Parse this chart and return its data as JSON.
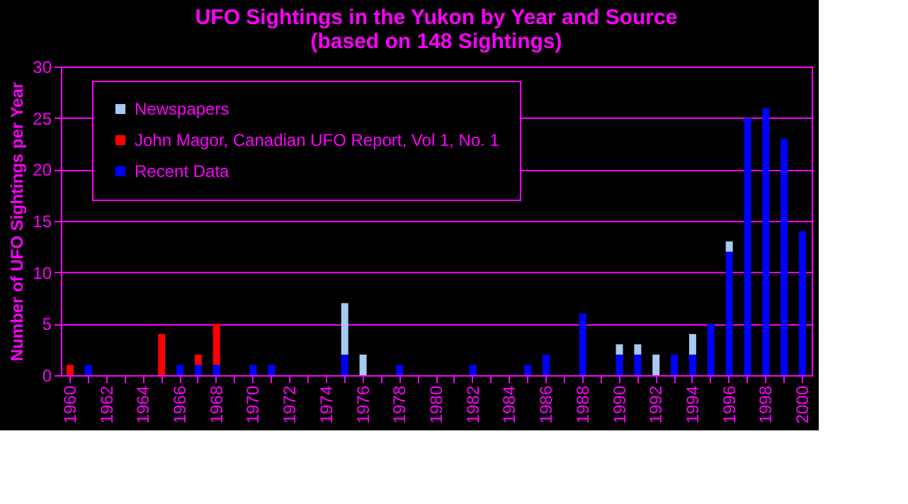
{
  "chart_data": {
    "type": "bar",
    "title": [
      "UFO Sightings in the Yukon by Year and Source",
      "(based on 148 Sightings)"
    ],
    "ylabel": "Number of UFO Sightings per Year",
    "categories": [
      "1960",
      null,
      "1962",
      null,
      "1964",
      null,
      "1966",
      null,
      "1968",
      null,
      "1970",
      null,
      "1972",
      null,
      "1974",
      null,
      "1976",
      null,
      "1978",
      null,
      "1980",
      null,
      "1982",
      null,
      "1984",
      null,
      "1986",
      null,
      "1988",
      null,
      "1990",
      null,
      "1992",
      null,
      "1994",
      null,
      "1996",
      null,
      "1998",
      null,
      "2000"
    ],
    "stacked": true,
    "series": [
      {
        "name": "Recent Data",
        "color": "#0000ff",
        "values": [
          null,
          1,
          null,
          null,
          null,
          null,
          1,
          1,
          1,
          null,
          1,
          1,
          null,
          null,
          null,
          2,
          null,
          null,
          1,
          null,
          null,
          null,
          1,
          null,
          null,
          1,
          2,
          null,
          6,
          null,
          2,
          2,
          null,
          2,
          2,
          5,
          12,
          25,
          26,
          23,
          14
        ]
      },
      {
        "name": "John Magor, Canadian UFO Report, Vol 1, No. 1",
        "color": "#ff0000",
        "values": [
          1,
          null,
          null,
          null,
          null,
          4,
          null,
          1,
          4,
          null,
          null,
          null,
          null,
          null,
          null,
          null,
          null,
          null,
          null,
          null,
          null,
          null,
          null,
          null,
          null,
          null,
          null,
          null,
          null,
          null,
          null,
          null,
          null,
          null,
          null,
          null,
          null,
          null,
          null,
          null,
          null
        ]
      },
      {
        "name": "Newspapers",
        "color": "#a6caf0",
        "values": [
          null,
          null,
          null,
          null,
          null,
          null,
          null,
          null,
          null,
          null,
          null,
          null,
          null,
          null,
          null,
          5,
          2,
          null,
          null,
          null,
          null,
          null,
          null,
          null,
          null,
          null,
          null,
          null,
          null,
          null,
          1,
          1,
          2,
          null,
          2,
          null,
          1,
          null,
          null,
          null,
          null
        ]
      }
    ],
    "ylim": [
      0,
      30
    ],
    "yticks": [
      0,
      5,
      10,
      15,
      20,
      25,
      30
    ],
    "grid": "y",
    "legend": "top left"
  }
}
